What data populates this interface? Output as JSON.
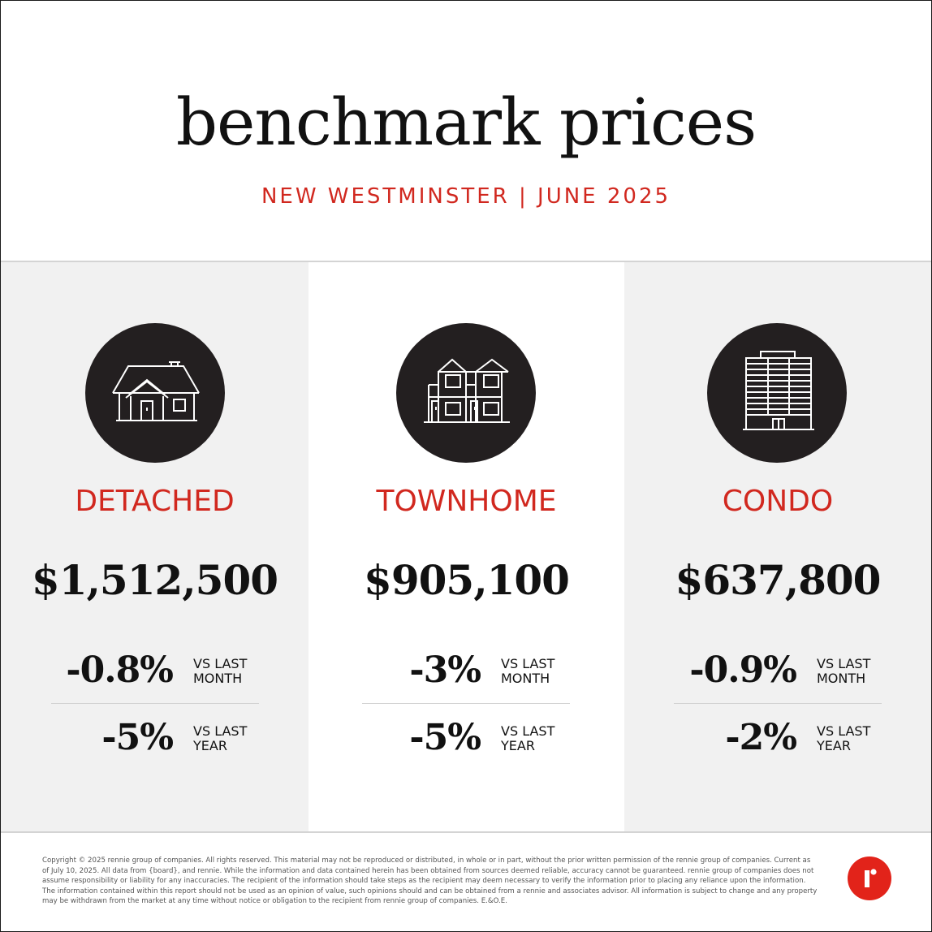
{
  "header": {
    "title": "benchmark prices",
    "subtitle": "NEW WESTMINSTER | JUNE 2025"
  },
  "colors": {
    "accent": "#d1281f",
    "icon_circle": "#231f20",
    "panel_gray": "#f1f1f1",
    "logo": "#e2231a"
  },
  "panels": [
    {
      "icon": "detached-house-icon",
      "category": "DETACHED",
      "price": "$1,512,500",
      "month_change": "-0.8%",
      "month_label_1": "VS LAST",
      "month_label_2": "MONTH",
      "year_change": "-5%",
      "year_label_1": "VS LAST",
      "year_label_2": "YEAR"
    },
    {
      "icon": "townhome-icon",
      "category": "TOWNHOME",
      "price": "$905,100",
      "month_change": "-3%",
      "month_label_1": "VS LAST",
      "month_label_2": "MONTH",
      "year_change": "-5%",
      "year_label_1": "VS LAST",
      "year_label_2": "YEAR"
    },
    {
      "icon": "condo-building-icon",
      "category": "CONDO",
      "price": "$637,800",
      "month_change": "-0.9%",
      "month_label_1": "VS LAST",
      "month_label_2": "MONTH",
      "year_change": "-2%",
      "year_label_1": "VS LAST",
      "year_label_2": "YEAR"
    }
  ],
  "footer": {
    "legal": "Copyright © 2025 rennie group of companies. All rights reserved. This material may not be reproduced or distributed, in whole or in part, without the prior written permission of the rennie group of companies. Current as of July 10, 2025. All data from {board}, and rennie. While the information and data contained herein has been obtained from sources deemed reliable, accuracy cannot be guaranteed. rennie group of companies does not assume responsibility or liability for any inaccuracies. The recipient of the information should take steps as the recipient may deem necessary to verify the information prior to placing any reliance upon the information. The information contained within this report should not be used as an opinion of value, such opinions should and can be obtained from a rennie and associates advisor. All information is subject to change and any property may be withdrawn from the market at any time without notice or obligation to the recipient from rennie group of companies. E.&O.E.",
    "logo": "rennie-logo-icon"
  }
}
